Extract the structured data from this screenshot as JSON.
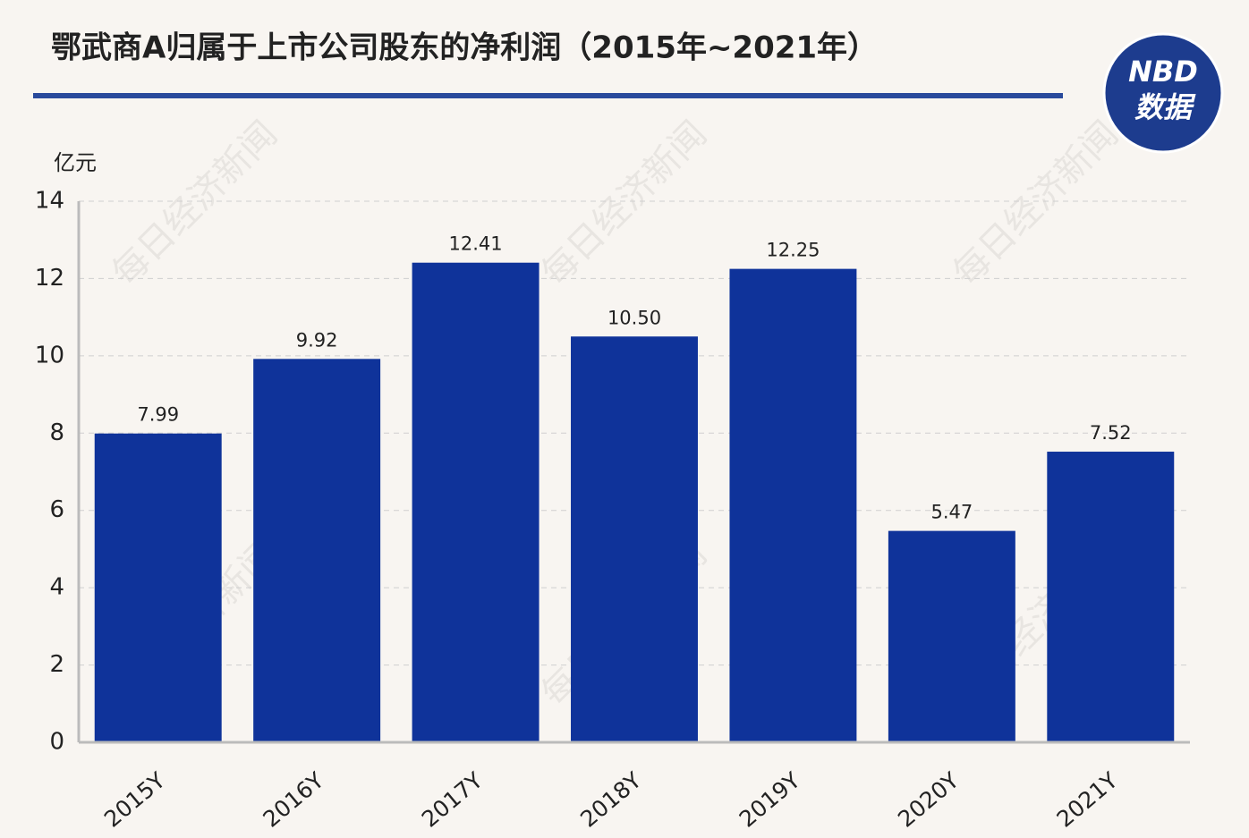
{
  "chart_data": {
    "type": "bar",
    "title": "鄂武商A归属于上市公司股东的净利润（2015年~2021年）",
    "y_axis_label": "亿元",
    "logo": {
      "top": "NBD",
      "bottom": "数据"
    },
    "watermark": "每日经济新闻",
    "categories": [
      "2015Y",
      "2016Y",
      "2017Y",
      "2018Y",
      "2019Y",
      "2020Y",
      "2021Y"
    ],
    "values": [
      7.99,
      9.92,
      12.41,
      10.5,
      12.25,
      5.47,
      7.52
    ],
    "value_labels": [
      "7.99",
      "9.92",
      "12.41",
      "10.50",
      "12.25",
      "5.47",
      "7.52"
    ],
    "color": "#0f339a",
    "ylim": [
      0,
      14
    ],
    "yticks": [
      0,
      2,
      4,
      6,
      8,
      10,
      12,
      14
    ],
    "grid": true
  }
}
